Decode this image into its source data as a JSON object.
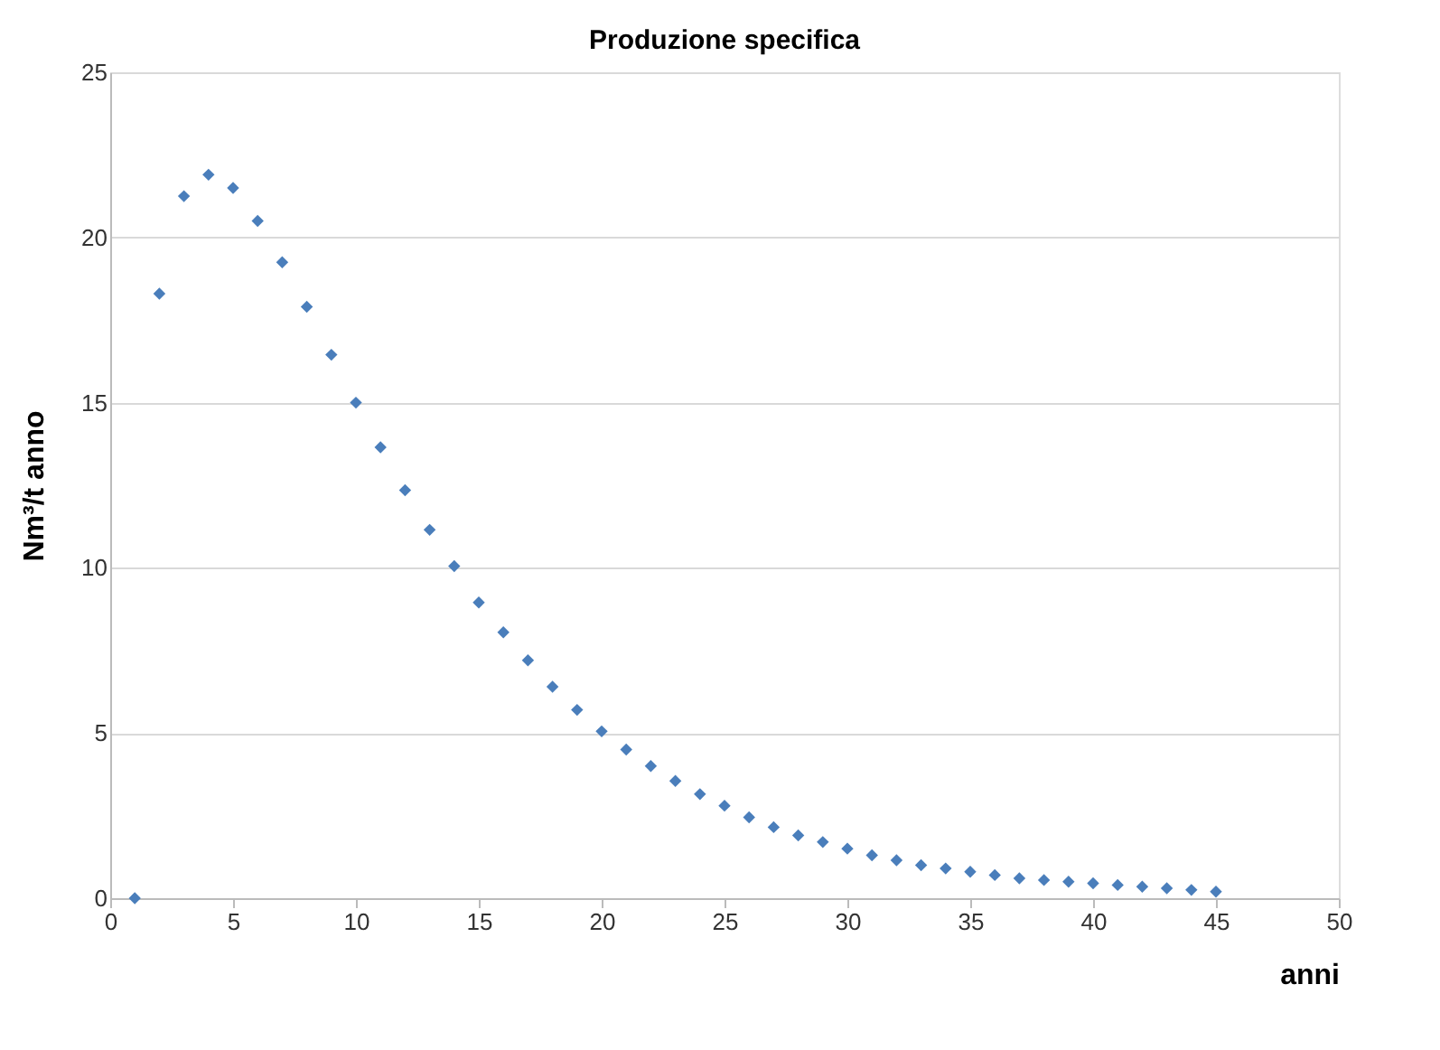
{
  "chart_data": {
    "type": "scatter",
    "title": "Produzione specifica",
    "xlabel": "anni",
    "ylabel": "Nm³/t anno",
    "x": [
      1,
      2,
      3,
      4,
      5,
      6,
      7,
      8,
      9,
      10,
      11,
      12,
      13,
      14,
      15,
      16,
      17,
      18,
      19,
      20,
      21,
      22,
      23,
      24,
      25,
      26,
      27,
      28,
      29,
      30,
      31,
      32,
      33,
      34,
      35,
      36,
      37,
      38,
      39,
      40,
      41,
      42,
      43,
      44,
      45
    ],
    "series": [
      {
        "color": "#4a7ebb",
        "values": [
          0,
          18.3,
          21.25,
          21.9,
          21.5,
          20.5,
          19.25,
          17.9,
          16.45,
          15.0,
          13.65,
          12.35,
          11.15,
          10.05,
          8.95,
          8.05,
          7.2,
          6.4,
          5.7,
          5.05,
          4.5,
          4.0,
          3.55,
          3.15,
          2.8,
          2.45,
          2.15,
          1.9,
          1.7,
          1.5,
          1.3,
          1.15,
          1.0,
          0.9,
          0.8,
          0.7,
          0.6,
          0.55,
          0.5,
          0.45,
          0.4,
          0.35,
          0.3,
          0.25,
          0.2
        ]
      }
    ],
    "xlim": [
      0,
      50
    ],
    "xticks": [
      0,
      5,
      10,
      15,
      20,
      25,
      30,
      35,
      40,
      45,
      50
    ],
    "ylim": [
      0,
      25
    ],
    "yticks": [
      0,
      5,
      10,
      15,
      20,
      25
    ],
    "grid": "y",
    "marker": "diamond"
  }
}
